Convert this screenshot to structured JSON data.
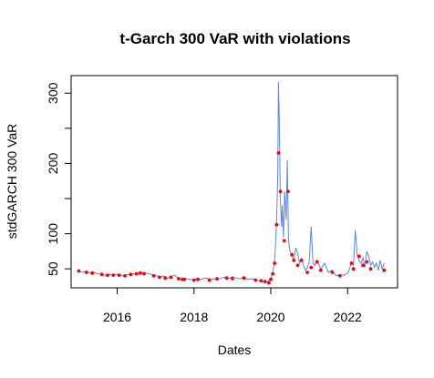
{
  "chart_data": {
    "type": "line",
    "title": "t-Garch 300 VaR with violations",
    "xlabel": "Dates",
    "ylabel": "stdGARCH 300 VaR",
    "xlim": [
      2014.8,
      2023.3
    ],
    "ylim": [
      23,
      325
    ],
    "x_ticks": [
      2016,
      2018,
      2020,
      2022
    ],
    "y_ticks": [
      50,
      100,
      200,
      300
    ],
    "y_minor_ticks": [
      150,
      250
    ],
    "grid": false,
    "legend": "none",
    "colors": {
      "series": "#5b86e5",
      "violations": "#ff0000"
    },
    "series": [
      {
        "role": "var-line",
        "x": [
          2015.0,
          2015.1,
          2015.2,
          2015.3,
          2015.4,
          2015.5,
          2015.6,
          2015.7,
          2015.8,
          2015.9,
          2016.0,
          2016.1,
          2016.2,
          2016.3,
          2016.4,
          2016.5,
          2016.6,
          2016.7,
          2016.8,
          2016.9,
          2017.0,
          2017.1,
          2017.2,
          2017.3,
          2017.4,
          2017.5,
          2017.6,
          2017.7,
          2017.8,
          2017.9,
          2018.0,
          2018.1,
          2018.2,
          2018.3,
          2018.4,
          2018.5,
          2018.6,
          2018.7,
          2018.8,
          2018.9,
          2019.0,
          2019.1,
          2019.2,
          2019.3,
          2019.4,
          2019.5,
          2019.6,
          2019.7,
          2019.8,
          2019.9,
          2019.95,
          2020.0,
          2020.05,
          2020.1,
          2020.15,
          2020.18,
          2020.2,
          2020.22,
          2020.25,
          2020.28,
          2020.3,
          2020.33,
          2020.36,
          2020.4,
          2020.43,
          2020.46,
          2020.5,
          2020.55,
          2020.6,
          2020.65,
          2020.7,
          2020.75,
          2020.8,
          2020.85,
          2020.9,
          2020.95,
          2021.0,
          2021.05,
          2021.1,
          2021.15,
          2021.2,
          2021.3,
          2021.4,
          2021.5,
          2021.6,
          2021.7,
          2021.8,
          2021.9,
          2022.0,
          2022.05,
          2022.1,
          2022.15,
          2022.2,
          2022.25,
          2022.3,
          2022.35,
          2022.4,
          2022.45,
          2022.5,
          2022.55,
          2022.6,
          2022.65,
          2022.7,
          2022.75,
          2022.8,
          2022.85,
          2022.9,
          2022.95
        ],
        "y": [
          47,
          45,
          46,
          44,
          45,
          43,
          42,
          41,
          42,
          41,
          42,
          40,
          41,
          42,
          43,
          42,
          44,
          45,
          43,
          42,
          41,
          38,
          40,
          37,
          39,
          41,
          36,
          35,
          36,
          35,
          34,
          36,
          35,
          37,
          35,
          36,
          34,
          37,
          38,
          36,
          39,
          37,
          36,
          38,
          35,
          36,
          34,
          33,
          32,
          31,
          33,
          35,
          45,
          60,
          115,
          180,
          316,
          260,
          150,
          110,
          140,
          95,
          160,
          120,
          205,
          90,
          75,
          70,
          62,
          80,
          72,
          58,
          65,
          55,
          48,
          52,
          60,
          110,
          58,
          55,
          62,
          50,
          58,
          45,
          48,
          40,
          42,
          41,
          44,
          50,
          60,
          55,
          105,
          70,
          62,
          58,
          66,
          52,
          75,
          68,
          55,
          60,
          52,
          58,
          48,
          62,
          50,
          58
        ]
      }
    ],
    "violations": {
      "x": [
        2015.0,
        2015.2,
        2015.35,
        2015.6,
        2015.75,
        2015.9,
        2016.05,
        2016.2,
        2016.35,
        2016.5,
        2016.6,
        2016.7,
        2016.95,
        2017.1,
        2017.25,
        2017.4,
        2017.6,
        2017.7,
        2017.75,
        2018.0,
        2018.1,
        2018.4,
        2018.6,
        2018.85,
        2019.0,
        2019.3,
        2019.6,
        2019.75,
        2019.85,
        2019.95,
        2020.0,
        2020.05,
        2020.1,
        2020.15,
        2020.2,
        2020.25,
        2020.35,
        2020.45,
        2020.55,
        2020.6,
        2020.7,
        2020.8,
        2020.95,
        2021.05,
        2021.2,
        2021.3,
        2021.6,
        2021.8,
        2022.1,
        2022.15,
        2022.3,
        2022.4,
        2022.5,
        2022.6,
        2022.95
      ],
      "y": [
        47,
        45,
        44,
        42,
        41,
        41,
        41,
        40,
        42,
        43,
        44,
        43,
        40,
        38,
        37,
        38,
        36,
        35,
        35,
        34,
        35,
        34,
        36,
        37,
        36,
        37,
        34,
        33,
        32,
        30,
        35,
        43,
        58,
        113,
        215,
        160,
        90,
        160,
        70,
        62,
        55,
        62,
        45,
        52,
        60,
        48,
        45,
        40,
        58,
        50,
        68,
        55,
        60,
        50,
        48
      ]
    }
  }
}
